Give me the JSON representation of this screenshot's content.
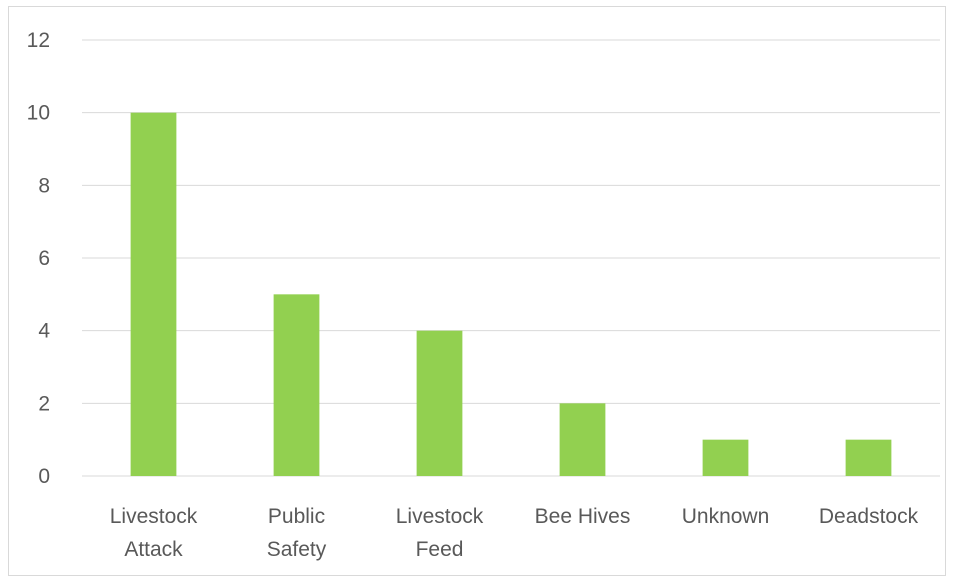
{
  "chart_data": {
    "type": "bar",
    "title": "",
    "xlabel": "",
    "ylabel": "",
    "categories": [
      [
        "Livestock",
        "Attack"
      ],
      [
        "Public",
        "Safety"
      ],
      [
        "Livestock",
        "Feed"
      ],
      [
        "Bee Hives"
      ],
      [
        "Unknown"
      ],
      [
        "Deadstock"
      ]
    ],
    "values": [
      10,
      5,
      4,
      2,
      1,
      1
    ],
    "ylim": [
      0,
      12
    ],
    "yticks": [
      0,
      2,
      4,
      6,
      8,
      10,
      12
    ],
    "grid": true,
    "legend": "none",
    "bar_color": "#92d050"
  }
}
